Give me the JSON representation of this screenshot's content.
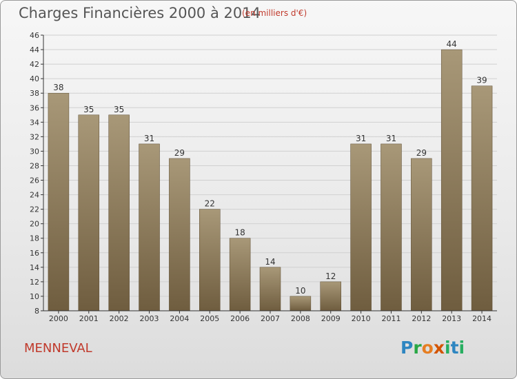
{
  "header": {
    "title": "Charges Financières 2000 à 2014",
    "subtitle": "(en milliers d'€)"
  },
  "footer": {
    "place": "MENNEVAL",
    "logo": [
      "P",
      "r",
      "o",
      "x",
      "i",
      "t",
      "i"
    ]
  },
  "colors": {
    "bar_top": "#a89878",
    "bar_bottom": "#6f5d3f",
    "accent": "#c0392b",
    "axis": "#333333"
  },
  "chart_data": {
    "type": "bar",
    "title": "Charges Financières 2000 à 2014",
    "subtitle": "(en milliers d'€)",
    "categories": [
      "2000",
      "2001",
      "2002",
      "2003",
      "2004",
      "2005",
      "2006",
      "2007",
      "2008",
      "2009",
      "2010",
      "2011",
      "2012",
      "2013",
      "2014"
    ],
    "values": [
      38,
      35,
      35,
      31,
      29,
      22,
      18,
      14,
      10,
      12,
      31,
      31,
      29,
      44,
      39
    ],
    "ylim": [
      8,
      46
    ],
    "yticks": [
      8,
      10,
      12,
      14,
      16,
      18,
      20,
      22,
      24,
      26,
      28,
      30,
      32,
      34,
      36,
      38,
      40,
      42,
      44,
      46
    ],
    "grid": true,
    "data_labels": true
  }
}
